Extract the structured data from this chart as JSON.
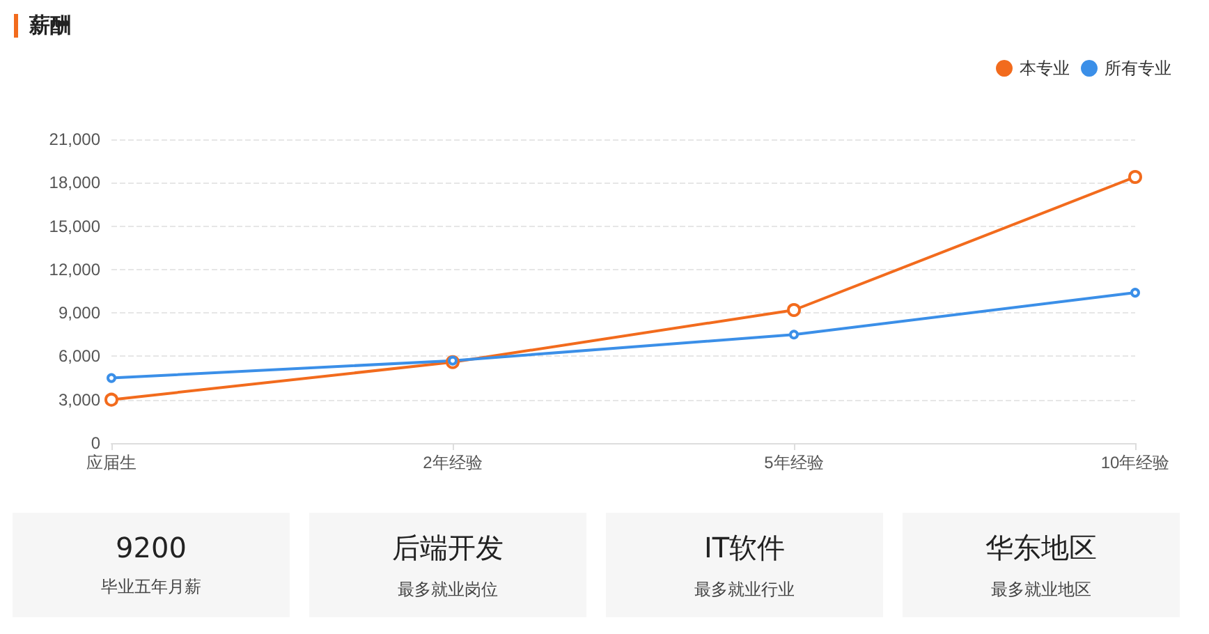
{
  "chart_data": {
    "type": "line",
    "title": "薪酬",
    "categories": [
      "应届生",
      "2年经验",
      "5年经验",
      "10年经验"
    ],
    "series": [
      {
        "name": "本专业",
        "color": "#f26b1d",
        "values": [
          3000,
          5600,
          9200,
          18400
        ]
      },
      {
        "name": "所有专业",
        "color": "#3b8fe8",
        "values": [
          4500,
          5700,
          7500,
          10400
        ]
      }
    ],
    "ylim": [
      0,
      21000
    ],
    "yticks": [
      0,
      {
        "value": 3000,
        "label": "3,000"
      },
      {
        "value": 6000,
        "label": "6,000"
      },
      {
        "value": 9000,
        "label": "9,000"
      },
      {
        "value": 12000,
        "label": "12,000"
      },
      {
        "value": 15000,
        "label": "15,000"
      },
      {
        "value": 18000,
        "label": "18,000"
      },
      {
        "value": 21000,
        "label": "21,000"
      }
    ],
    "grid": "y",
    "legend": "top right",
    "marker": "circle",
    "line_style": "solid",
    "annotations": [
      "9200",
      "毕业五年月薪",
      "后端开发",
      "最多就业岗位",
      "IT软件",
      "最多就业行业",
      "华东地区",
      "最多就业地区"
    ]
  }
}
